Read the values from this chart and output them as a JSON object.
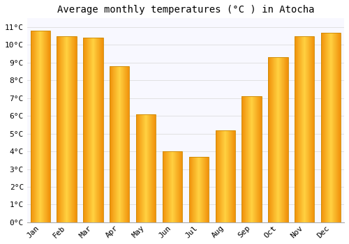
{
  "title": "Average monthly temperatures (°C ) in Atocha",
  "months": [
    "Jan",
    "Feb",
    "Mar",
    "Apr",
    "May",
    "Jun",
    "Jul",
    "Aug",
    "Sep",
    "Oct",
    "Nov",
    "Dec"
  ],
  "values": [
    10.8,
    10.5,
    10.4,
    8.8,
    6.1,
    4.0,
    3.7,
    5.2,
    7.1,
    9.3,
    10.5,
    10.7
  ],
  "bar_color_center": "#FFD040",
  "bar_color_edge": "#F0900A",
  "ylim": [
    0,
    11.5
  ],
  "ytick_values": [
    0,
    1,
    2,
    3,
    4,
    5,
    6,
    7,
    8,
    9,
    10,
    11
  ],
  "ytick_labels": [
    "0°C",
    "1°C",
    "2°C",
    "3°C",
    "4°C",
    "5°C",
    "6°C",
    "7°C",
    "8°C",
    "9°C",
    "10°C",
    "11°C"
  ],
  "background_color": "#FFFFFF",
  "plot_bg_color": "#F8F8FF",
  "grid_color": "#DDDDDD",
  "title_fontsize": 10,
  "tick_fontsize": 8
}
